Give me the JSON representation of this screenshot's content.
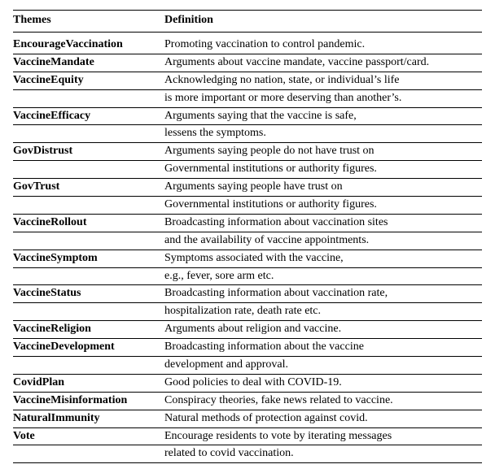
{
  "columns": [
    "Themes",
    "Definition"
  ],
  "rows": [
    {
      "theme": "EncourageVaccination",
      "def": [
        "Promoting vaccination to control pandemic."
      ]
    },
    {
      "theme": "VaccineMandate",
      "def": [
        "Arguments about vaccine mandate, vaccine passport/card."
      ]
    },
    {
      "theme": "VaccineEquity",
      "def": [
        "Acknowledging no nation, state, or individual’s life",
        "is more important or more deserving than another’s."
      ]
    },
    {
      "theme": "VaccineEfficacy",
      "def": [
        "Arguments saying that the vaccine is safe,",
        "lessens the symptoms."
      ]
    },
    {
      "theme": "GovDistrust",
      "def": [
        "Arguments saying people do not have trust on",
        "Governmental institutions or authority figures."
      ]
    },
    {
      "theme": "GovTrust",
      "def": [
        "Arguments saying people have trust on",
        "Governmental institutions or authority figures."
      ]
    },
    {
      "theme": "VaccineRollout",
      "def": [
        "Broadcasting information about vaccination sites",
        "and the availability of vaccine appointments."
      ]
    },
    {
      "theme": "VaccineSymptom",
      "def": [
        "Symptoms associated with the vaccine,",
        "e.g., fever, sore arm etc."
      ]
    },
    {
      "theme": "VaccineStatus",
      "def": [
        "Broadcasting information about vaccination rate,",
        "hospitalization rate, death rate etc."
      ]
    },
    {
      "theme": "VaccineReligion",
      "def": [
        "Arguments about religion and vaccine."
      ]
    },
    {
      "theme": "VaccineDevelopment",
      "def": [
        "Broadcasting information about the vaccine",
        "development and approval."
      ]
    },
    {
      "theme": "CovidPlan",
      "def": [
        "Good policies to deal with COVID-19."
      ]
    },
    {
      "theme": "VaccineMisinformation",
      "def": [
        "Conspiracy theories, fake news related to vaccine."
      ]
    },
    {
      "theme": "NaturalImmunity",
      "def": [
        "Natural methods of protection against covid."
      ]
    },
    {
      "theme": "Vote",
      "def": [
        "Encourage residents to vote by iterating messages",
        "related to covid vaccination."
      ]
    }
  ]
}
